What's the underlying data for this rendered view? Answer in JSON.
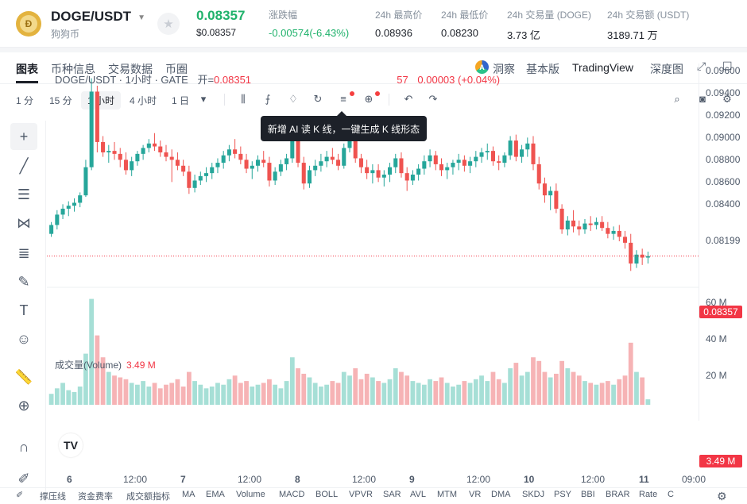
{
  "header": {
    "pair": "DOGE/USDT",
    "name_cn": "狗狗币",
    "coin_glyph": "Ð",
    "price": "0.08357",
    "price_usd": "$0.08357",
    "stats": [
      {
        "label": "涨跌幅",
        "value": "-0.00574(-6.43%)",
        "green": true
      },
      {
        "label": "24h 最高价",
        "value": "0.08936"
      },
      {
        "label": "24h 最低价",
        "value": "0.08230"
      },
      {
        "label": "24h 交易量 (DOGE)",
        "value": "3.73 亿"
      },
      {
        "label": "24h 交易额 (USDT)",
        "value": "3189.71 万"
      }
    ]
  },
  "tabs": [
    "图表",
    "币种信息",
    "交易数据",
    "币圈"
  ],
  "right_tabs": {
    "ai": "洞察",
    "basic": "基本版",
    "tv": "TradingView",
    "depth": "深度图"
  },
  "intervals": [
    "1 分",
    "15 分",
    "1 小时",
    "4 小时",
    "1 日"
  ],
  "selected_interval": "1 小时",
  "legend": {
    "title": "DOGE/USDT · 1小时 · GATE",
    "open_label": "开=",
    "open_value": "0.08351",
    "change_tail": "57",
    "change": "0.00003 (+0.04%)"
  },
  "tooltip": "新增 AI 读 K 线，一键生成 K 线形态",
  "volume_legend": {
    "label": "成交量(Volume)",
    "value": "3.49 M"
  },
  "price_tag": "0.08357",
  "volume_tag": "3.49 M",
  "y_labels": [
    "0.09600",
    "0.09400",
    "0.09200",
    "0.09000",
    "0.08800",
    "0.08600",
    "0.08400",
    "0.08199"
  ],
  "vol_labels": [
    "60 M",
    "40 M",
    "20 M"
  ],
  "x_labels": [
    "6",
    "12:00",
    "7",
    "12:00",
    "8",
    "12:00",
    "9",
    "12:00",
    "10",
    "12:00",
    "11",
    "09:00"
  ],
  "bottom_items": [
    "撑压线",
    "资金费率",
    "成交额指标",
    "MA",
    "EMA",
    "Volume",
    "MACD",
    "BOLL",
    "VPVR",
    "SAR",
    "AVL",
    "MTM",
    "VR",
    "DMA",
    "SKDJ",
    "PSY",
    "BBI",
    "BRAR",
    "Rate",
    "C"
  ],
  "colors": {
    "up": "#26a69a",
    "down": "#ef5350",
    "accent": "#20b26c"
  },
  "chart_data": {
    "type": "candlestick",
    "title": "DOGE/USDT · 1小时 · GATE",
    "ylim": [
      0.0815,
      0.0965
    ],
    "volume_ylim": [
      0,
      60
    ],
    "candles": [
      [
        0.085,
        0.0858,
        0.0848,
        0.0856,
        6
      ],
      [
        0.0856,
        0.0866,
        0.0853,
        0.0863,
        9
      ],
      [
        0.0863,
        0.087,
        0.086,
        0.0867,
        12
      ],
      [
        0.0867,
        0.0872,
        0.0862,
        0.0869,
        8
      ],
      [
        0.0869,
        0.0874,
        0.0865,
        0.0871,
        7
      ],
      [
        0.0871,
        0.0878,
        0.0868,
        0.0876,
        10
      ],
      [
        0.0876,
        0.09,
        0.0875,
        0.0895,
        28
      ],
      [
        0.0895,
        0.0955,
        0.0893,
        0.0946,
        58
      ],
      [
        0.0946,
        0.095,
        0.0905,
        0.0912,
        38
      ],
      [
        0.0912,
        0.0916,
        0.0902,
        0.0905,
        26
      ],
      [
        0.0905,
        0.091,
        0.0898,
        0.0906,
        18
      ],
      [
        0.0906,
        0.0912,
        0.09,
        0.0904,
        16
      ],
      [
        0.0904,
        0.0908,
        0.0895,
        0.09,
        15
      ],
      [
        0.09,
        0.0905,
        0.089,
        0.0893,
        14
      ],
      [
        0.0893,
        0.0902,
        0.0889,
        0.0899,
        12
      ],
      [
        0.0899,
        0.0906,
        0.0896,
        0.0904,
        11
      ],
      [
        0.0904,
        0.091,
        0.09,
        0.0908,
        13
      ],
      [
        0.0908,
        0.0914,
        0.0905,
        0.0911,
        10
      ],
      [
        0.0911,
        0.0918,
        0.0906,
        0.0909,
        12
      ],
      [
        0.0909,
        0.0913,
        0.0902,
        0.0905,
        9
      ],
      [
        0.0905,
        0.091,
        0.0899,
        0.0902,
        11
      ],
      [
        0.0902,
        0.0907,
        0.0885,
        0.09,
        12
      ],
      [
        0.09,
        0.0905,
        0.0893,
        0.0896,
        14
      ],
      [
        0.0896,
        0.09,
        0.0889,
        0.0892,
        10
      ],
      [
        0.0892,
        0.0896,
        0.0877,
        0.0881,
        18
      ],
      [
        0.0881,
        0.089,
        0.0878,
        0.0886,
        13
      ],
      [
        0.0886,
        0.0892,
        0.0883,
        0.0889,
        11
      ],
      [
        0.0889,
        0.0895,
        0.0885,
        0.0891,
        9
      ],
      [
        0.0891,
        0.0898,
        0.0887,
        0.0895,
        10
      ],
      [
        0.0895,
        0.0901,
        0.0891,
        0.0898,
        12
      ],
      [
        0.0898,
        0.0906,
        0.0894,
        0.0903,
        11
      ],
      [
        0.0903,
        0.091,
        0.0899,
        0.0907,
        14
      ],
      [
        0.0907,
        0.0914,
        0.0901,
        0.0904,
        16
      ],
      [
        0.0904,
        0.0909,
        0.0897,
        0.09,
        12
      ],
      [
        0.09,
        0.0904,
        0.0891,
        0.0894,
        13
      ],
      [
        0.0894,
        0.0899,
        0.0887,
        0.0896,
        10
      ],
      [
        0.0896,
        0.0903,
        0.0892,
        0.09,
        11
      ],
      [
        0.09,
        0.0906,
        0.0895,
        0.0898,
        12
      ],
      [
        0.0898,
        0.0902,
        0.0882,
        0.0886,
        14
      ],
      [
        0.0886,
        0.0895,
        0.0883,
        0.0892,
        11
      ],
      [
        0.0892,
        0.09,
        0.0889,
        0.0897,
        9
      ],
      [
        0.0897,
        0.0904,
        0.0893,
        0.0901,
        13
      ],
      [
        0.0901,
        0.0918,
        0.0898,
        0.0914,
        26
      ],
      [
        0.0914,
        0.0917,
        0.0895,
        0.0898,
        20
      ],
      [
        0.0898,
        0.0902,
        0.088,
        0.0884,
        17
      ],
      [
        0.0884,
        0.0896,
        0.0881,
        0.0893,
        15
      ],
      [
        0.0893,
        0.09,
        0.0889,
        0.0896,
        12
      ],
      [
        0.0896,
        0.0904,
        0.0892,
        0.0899,
        10
      ],
      [
        0.0899,
        0.0906,
        0.0895,
        0.0902,
        11
      ],
      [
        0.0902,
        0.0908,
        0.0897,
        0.09,
        13
      ],
      [
        0.09,
        0.0904,
        0.0893,
        0.0896,
        12
      ],
      [
        0.0896,
        0.0911,
        0.0894,
        0.0908,
        18
      ],
      [
        0.0908,
        0.0918,
        0.0905,
        0.0913,
        16
      ],
      [
        0.0913,
        0.0916,
        0.0898,
        0.0901,
        20
      ],
      [
        0.0901,
        0.0904,
        0.0891,
        0.0895,
        14
      ],
      [
        0.0895,
        0.09,
        0.0887,
        0.0891,
        17
      ],
      [
        0.0891,
        0.0897,
        0.0884,
        0.0893,
        15
      ],
      [
        0.0893,
        0.0897,
        0.0885,
        0.0888,
        13
      ],
      [
        0.0888,
        0.0893,
        0.0882,
        0.089,
        12
      ],
      [
        0.089,
        0.0898,
        0.0885,
        0.0895,
        14
      ],
      [
        0.0895,
        0.0904,
        0.0891,
        0.0901,
        20
      ],
      [
        0.0901,
        0.0905,
        0.0888,
        0.0891,
        18
      ],
      [
        0.0891,
        0.0895,
        0.0879,
        0.0886,
        16
      ],
      [
        0.0886,
        0.0893,
        0.0883,
        0.089,
        13
      ],
      [
        0.089,
        0.0897,
        0.0886,
        0.0894,
        12
      ],
      [
        0.0894,
        0.0903,
        0.089,
        0.0899,
        11
      ],
      [
        0.0899,
        0.0907,
        0.0895,
        0.0903,
        14
      ],
      [
        0.0903,
        0.0906,
        0.0893,
        0.0897,
        13
      ],
      [
        0.0897,
        0.0901,
        0.0889,
        0.0893,
        15
      ],
      [
        0.0893,
        0.0898,
        0.0887,
        0.0895,
        12
      ],
      [
        0.0895,
        0.09,
        0.089,
        0.0898,
        10
      ],
      [
        0.0898,
        0.0904,
        0.0893,
        0.09,
        11
      ],
      [
        0.09,
        0.0903,
        0.0892,
        0.0896,
        13
      ],
      [
        0.0896,
        0.0902,
        0.0891,
        0.0899,
        12
      ],
      [
        0.0899,
        0.0906,
        0.0895,
        0.0902,
        14
      ],
      [
        0.0902,
        0.0908,
        0.0898,
        0.0905,
        16
      ],
      [
        0.0905,
        0.0911,
        0.09,
        0.0906,
        13
      ],
      [
        0.0906,
        0.0909,
        0.0896,
        0.0899,
        18
      ],
      [
        0.0899,
        0.0903,
        0.0893,
        0.0898,
        14
      ],
      [
        0.0898,
        0.0905,
        0.0895,
        0.0903,
        12
      ],
      [
        0.0903,
        0.0916,
        0.09,
        0.0913,
        20
      ],
      [
        0.0913,
        0.0917,
        0.0899,
        0.0902,
        23
      ],
      [
        0.0902,
        0.091,
        0.0898,
        0.0907,
        16
      ],
      [
        0.0907,
        0.0915,
        0.0902,
        0.0911,
        18
      ],
      [
        0.0911,
        0.0916,
        0.0893,
        0.0897,
        26
      ],
      [
        0.0897,
        0.0902,
        0.088,
        0.0884,
        24
      ],
      [
        0.0884,
        0.0888,
        0.0871,
        0.0876,
        18
      ],
      [
        0.0876,
        0.0882,
        0.0866,
        0.0879,
        15
      ],
      [
        0.0879,
        0.0884,
        0.0864,
        0.0867,
        17
      ],
      [
        0.0867,
        0.087,
        0.085,
        0.0853,
        24
      ],
      [
        0.0853,
        0.0862,
        0.0849,
        0.0859,
        20
      ],
      [
        0.0859,
        0.0866,
        0.0851,
        0.0855,
        18
      ],
      [
        0.0855,
        0.0859,
        0.0849,
        0.0853,
        16
      ],
      [
        0.0853,
        0.086,
        0.085,
        0.0857,
        13
      ],
      [
        0.0857,
        0.0862,
        0.0852,
        0.0856,
        12
      ],
      [
        0.0856,
        0.0861,
        0.0853,
        0.0858,
        11
      ],
      [
        0.0858,
        0.0862,
        0.0852,
        0.0854,
        12
      ],
      [
        0.0854,
        0.0858,
        0.0847,
        0.085,
        13
      ],
      [
        0.085,
        0.0855,
        0.0846,
        0.0852,
        11
      ],
      [
        0.0852,
        0.0856,
        0.0845,
        0.0848,
        14
      ],
      [
        0.0848,
        0.0852,
        0.084,
        0.0844,
        16
      ],
      [
        0.0844,
        0.085,
        0.0825,
        0.083,
        34
      ],
      [
        0.083,
        0.0839,
        0.0827,
        0.0836,
        18
      ],
      [
        0.0836,
        0.084,
        0.0829,
        0.0834,
        15
      ],
      [
        0.0834,
        0.0838,
        0.083,
        0.0835,
        3
      ]
    ]
  }
}
